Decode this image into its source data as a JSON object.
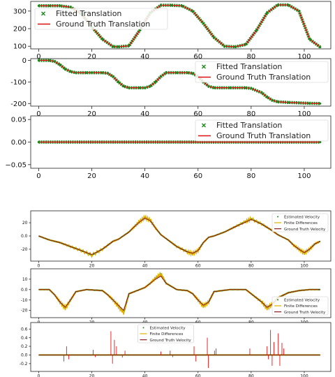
{
  "chart_data": [
    {
      "type": "scatter",
      "legend": [
        "Fitted Translation",
        "Ground Truth Translation"
      ],
      "legend_position": "top-left",
      "xlim": [
        -3,
        110
      ],
      "ylim": [
        85,
        355
      ],
      "xticks": [
        0,
        20,
        40,
        60,
        80,
        100
      ],
      "yticks": [
        100,
        200,
        300
      ],
      "x": [
        0,
        4,
        8,
        12,
        16,
        20,
        24,
        28,
        30,
        34,
        38,
        42,
        46,
        50,
        54,
        58,
        62,
        66,
        70,
        74,
        78,
        82,
        86,
        90,
        94,
        98,
        102,
        106
      ],
      "series": [
        {
          "name": "Fitted Translation",
          "values": [
            330,
            330,
            330,
            322,
            285,
            210,
            140,
            98,
            97,
            102,
            190,
            290,
            333,
            333,
            330,
            300,
            230,
            150,
            100,
            97,
            110,
            190,
            290,
            335,
            335,
            300,
            140,
            95
          ]
        },
        {
          "name": "Ground Truth Translation",
          "values": [
            330,
            330,
            330,
            322,
            285,
            210,
            140,
            98,
            97,
            102,
            190,
            290,
            333,
            333,
            330,
            300,
            230,
            150,
            100,
            97,
            110,
            190,
            290,
            335,
            335,
            300,
            140,
            95
          ]
        }
      ]
    },
    {
      "type": "scatter",
      "legend": [
        "Fitted Translation",
        "Ground Truth Translation"
      ],
      "legend_position": "top-right",
      "xlim": [
        -3,
        110
      ],
      "ylim": [
        -212,
        8
      ],
      "xticks": [
        0,
        20,
        40,
        60,
        80,
        100
      ],
      "yticks": [
        0,
        -100,
        -200
      ],
      "x": [
        0,
        4,
        6,
        8,
        10,
        12,
        14,
        18,
        20,
        24,
        26,
        28,
        30,
        32,
        34,
        38,
        40,
        42,
        44,
        46,
        48,
        52,
        56,
        58,
        60,
        62,
        64,
        66,
        72,
        78,
        80,
        84,
        86,
        88,
        90,
        94,
        98,
        102,
        106
      ],
      "series": [
        {
          "name": "Fitted Translation",
          "values": [
            0,
            0,
            -5,
            -20,
            -40,
            -52,
            -57,
            -57,
            -57,
            -57,
            -60,
            -75,
            -100,
            -120,
            -127,
            -127,
            -127,
            -120,
            -100,
            -75,
            -57,
            -57,
            -57,
            -60,
            -75,
            -100,
            -120,
            -127,
            -127,
            -127,
            -130,
            -150,
            -170,
            -185,
            -192,
            -195,
            -197,
            -199,
            -200
          ]
        },
        {
          "name": "Ground Truth Translation",
          "values": [
            0,
            0,
            -5,
            -20,
            -40,
            -52,
            -57,
            -57,
            -57,
            -57,
            -60,
            -75,
            -100,
            -120,
            -127,
            -127,
            -127,
            -120,
            -100,
            -75,
            -57,
            -57,
            -57,
            -60,
            -75,
            -100,
            -120,
            -127,
            -127,
            -127,
            -130,
            -150,
            -170,
            -185,
            -192,
            -195,
            -197,
            -199,
            -200
          ]
        }
      ]
    },
    {
      "type": "scatter",
      "legend": [
        "Fitted Translation",
        "Ground Truth Translation"
      ],
      "legend_position": "top-right",
      "xlim": [
        -3,
        110
      ],
      "ylim": [
        -0.058,
        0.058
      ],
      "xticks": [
        0,
        20,
        40,
        60,
        80,
        100
      ],
      "yticks": [
        0.05,
        0.0,
        -0.05
      ],
      "ytick_labels": [
        "0.05",
        "0.00",
        "−0.05"
      ],
      "x": [
        0,
        106
      ],
      "series": [
        {
          "name": "Fitted Translation",
          "values": [
            0,
            0
          ]
        },
        {
          "name": "Ground Truth Translation",
          "values": [
            0,
            0
          ]
        }
      ]
    },
    {
      "type": "line",
      "legend": [
        "Estimated Velocity",
        "Finite Differences",
        "Ground Truth Velocity"
      ],
      "legend_position": "right",
      "xlim": [
        -3,
        110
      ],
      "ylim": [
        -38,
        38
      ],
      "xticks": [
        0,
        20,
        40,
        60,
        80,
        100
      ],
      "yticks": [
        20,
        0,
        -20
      ],
      "x": [
        0,
        4,
        8,
        12,
        16,
        20,
        24,
        28,
        30,
        34,
        36,
        38,
        40,
        42,
        44,
        46,
        48,
        52,
        56,
        58,
        60,
        62,
        64,
        66,
        70,
        74,
        78,
        80,
        84,
        88,
        90,
        94,
        96,
        98,
        100,
        102,
        104,
        106
      ],
      "series": [
        {
          "name": "Estimated Velocity",
          "values": [
            0,
            -6,
            -10,
            -16,
            -22,
            -29,
            -20,
            -8,
            -5,
            6,
            14,
            22,
            28,
            24,
            12,
            2,
            -4,
            -16,
            -24,
            -27,
            -22,
            -10,
            -2,
            0,
            6,
            14,
            22,
            26,
            18,
            8,
            2,
            -6,
            -14,
            -20,
            -26,
            -20,
            -12,
            -8
          ]
        },
        {
          "name": "Finite Differences",
          "values": [
            0,
            -6,
            -10,
            -16,
            -22,
            -29,
            -20,
            -8,
            -5,
            6,
            14,
            22,
            28,
            24,
            12,
            2,
            -4,
            -16,
            -24,
            -27,
            -22,
            -10,
            -2,
            0,
            6,
            14,
            22,
            26,
            18,
            8,
            2,
            -6,
            -14,
            -20,
            -26,
            -20,
            -12,
            -8
          ]
        },
        {
          "name": "Ground Truth Velocity",
          "values": [
            0,
            -6,
            -10,
            -16,
            -22,
            -28,
            -20,
            -8,
            -5,
            6,
            14,
            21,
            27,
            23,
            12,
            2,
            -4,
            -16,
            -24,
            -26,
            -22,
            -10,
            -2,
            0,
            6,
            14,
            21,
            25,
            18,
            8,
            2,
            -6,
            -14,
            -20,
            -25,
            -20,
            -12,
            -8
          ]
        }
      ]
    },
    {
      "type": "line",
      "legend": [
        "Estimated Velocity",
        "Finite Differences",
        "Ground Truth Velocity"
      ],
      "legend_position": "bottom-right",
      "xlim": [
        -3,
        110
      ],
      "ylim": [
        -27,
        20
      ],
      "xticks": [
        0,
        20,
        40,
        60,
        80,
        100
      ],
      "yticks": [
        10,
        0,
        -10,
        -20
      ],
      "x": [
        0,
        4,
        6,
        8,
        10,
        12,
        14,
        18,
        24,
        26,
        28,
        30,
        32,
        34,
        38,
        40,
        42,
        44,
        46,
        48,
        52,
        56,
        58,
        60,
        62,
        64,
        66,
        72,
        78,
        80,
        84,
        86,
        88,
        90,
        94,
        98,
        102,
        106
      ],
      "series": [
        {
          "name": "Estimated Velocity",
          "values": [
            0,
            0,
            -5,
            -12,
            -18,
            -10,
            -2,
            0,
            -1,
            -5,
            -10,
            -16,
            -22,
            -4,
            0,
            2,
            6,
            11,
            15,
            6,
            0,
            -1,
            -4,
            -10,
            -16,
            -12,
            -2,
            0,
            0,
            -4,
            -12,
            -18,
            -14,
            -8,
            -3,
            -1,
            0,
            0
          ]
        },
        {
          "name": "Finite Differences",
          "values": [
            0,
            0,
            -5,
            -12,
            -18,
            -10,
            -2,
            0,
            -1,
            -5,
            -10,
            -16,
            -22,
            -4,
            0,
            2,
            6,
            11,
            15,
            6,
            0,
            -1,
            -4,
            -10,
            -16,
            -12,
            -2,
            0,
            0,
            -4,
            -12,
            -18,
            -14,
            -8,
            -3,
            -1,
            0,
            0
          ]
        },
        {
          "name": "Ground Truth Velocity",
          "values": [
            0,
            0,
            -5,
            -12,
            -17,
            -10,
            -2,
            0,
            -1,
            -5,
            -10,
            -15,
            -20,
            -4,
            0,
            2,
            6,
            10,
            13,
            6,
            0,
            -1,
            -4,
            -10,
            -15,
            -12,
            -2,
            0,
            0,
            -4,
            -12,
            -17,
            -14,
            -8,
            -3,
            -1,
            0,
            0
          ]
        }
      ]
    },
    {
      "type": "line",
      "legend": [
        "Estimated Velocity",
        "Finite Differences",
        "Ground Truth Velocity"
      ],
      "legend_position": "top-center",
      "xlim": [
        -3,
        110
      ],
      "ylim": [
        -0.38,
        0.75
      ],
      "xticks": [
        0,
        20,
        40,
        60,
        80,
        100
      ],
      "yticks": [
        0.6,
        0.4,
        0.2,
        0.0,
        -0.2
      ],
      "x": [
        0,
        106
      ],
      "series": [
        {
          "name": "Estimated Velocity",
          "values": [
            0,
            0
          ]
        },
        {
          "name": "Finite Differences",
          "values": [
            0,
            0
          ]
        },
        {
          "name": "Ground Truth Velocity",
          "values": [
            0,
            0
          ]
        }
      ],
      "finite_difference_spikes": [
        [
          9.5,
          -0.15
        ],
        [
          10.5,
          0.2
        ],
        [
          11.3,
          -0.1
        ],
        [
          20.5,
          0.12
        ],
        [
          21.3,
          -0.05
        ],
        [
          27.2,
          0.55
        ],
        [
          27.8,
          -0.2
        ],
        [
          28.5,
          0.35
        ],
        [
          29.3,
          0.2
        ],
        [
          31.5,
          -0.06
        ],
        [
          32.5,
          0.1
        ],
        [
          46,
          0.08
        ],
        [
          49.5,
          0.1
        ],
        [
          50.5,
          -0.05
        ],
        [
          58.5,
          0.2
        ],
        [
          59.2,
          -0.15
        ],
        [
          63.5,
          0.4
        ],
        [
          63.9,
          -0.3
        ],
        [
          66.2,
          0.1
        ],
        [
          66.8,
          0.15
        ],
        [
          79.5,
          0.15
        ],
        [
          86,
          0.2
        ],
        [
          86.5,
          -0.1
        ],
        [
          87.3,
          0.58
        ],
        [
          87.9,
          -0.25
        ],
        [
          88.6,
          0.3
        ],
        [
          90.2,
          0.5
        ],
        [
          90.8,
          -0.25
        ],
        [
          91.6,
          0.28
        ],
        [
          92.3,
          0.15
        ]
      ]
    }
  ],
  "colors": {
    "fitted": "#1a8a1a",
    "ground_truth": "#dd1111",
    "estimated": "#1a8a1a",
    "finite": "#e0b000",
    "ground_truth_velocity": "#8b1a1a",
    "spikes": "#ee1111"
  }
}
